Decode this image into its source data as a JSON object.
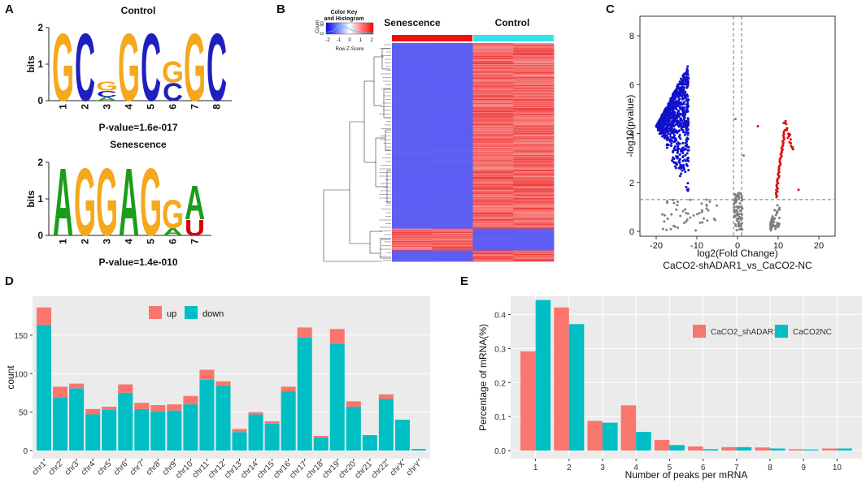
{
  "panel_labels": {
    "a": "A",
    "b": "B",
    "c": "C",
    "d": "D",
    "e": "E"
  },
  "colors": {
    "A": "#1a9d1a",
    "C": "#1f1fbf",
    "G": "#f5a81c",
    "U": "#d50000",
    "up": "#f8766d",
    "down": "#00bfc4",
    "heat_low": "#5b5bf5",
    "heat_high": "#f03a3a",
    "senescence_bar": "#ee1111",
    "control_bar": "#33e4ee",
    "volcano_blue": "#1010cc",
    "volcano_red": "#dd1111",
    "volcano_gray": "#808080"
  },
  "chart_data": [
    {
      "type": "sequence_logo",
      "title": "Control",
      "ylabel": "bits",
      "ylim": [
        0,
        2
      ],
      "ytick_labels": [
        "0",
        "1",
        "2"
      ],
      "positions": [
        "1",
        "2",
        "3",
        "4",
        "5",
        "6",
        "7",
        "8"
      ],
      "stacks": [
        [
          {
            "letter": "G",
            "bits": 1.9
          }
        ],
        [
          {
            "letter": "C",
            "bits": 1.9
          }
        ],
        [
          {
            "letter": "G",
            "bits": 0.25
          },
          {
            "letter": "C",
            "bits": 0.18
          },
          {
            "letter": "A",
            "bits": 0.1
          }
        ],
        [
          {
            "letter": "G",
            "bits": 1.9
          }
        ],
        [
          {
            "letter": "C",
            "bits": 1.9
          }
        ],
        [
          {
            "letter": "G",
            "bits": 0.6
          },
          {
            "letter": "C",
            "bits": 0.5
          }
        ],
        [
          {
            "letter": "G",
            "bits": 1.9
          }
        ],
        [
          {
            "letter": "C",
            "bits": 1.9
          }
        ]
      ],
      "annotation": "P-value=1.6e-017"
    },
    {
      "type": "sequence_logo",
      "title": "Senescence",
      "ylabel": "bits",
      "ylim": [
        0,
        2
      ],
      "ytick_labels": [
        "0",
        "1",
        "2"
      ],
      "positions": [
        "1",
        "2",
        "3",
        "4",
        "5",
        "6",
        "7"
      ],
      "stacks": [
        [
          {
            "letter": "A",
            "bits": 1.9
          }
        ],
        [
          {
            "letter": "G",
            "bits": 1.9
          }
        ],
        [
          {
            "letter": "G",
            "bits": 1.9
          }
        ],
        [
          {
            "letter": "A",
            "bits": 1.9
          }
        ],
        [
          {
            "letter": "G",
            "bits": 1.9
          }
        ],
        [
          {
            "letter": "G",
            "bits": 0.8
          },
          {
            "letter": "A",
            "bits": 0.2
          }
        ],
        [
          {
            "letter": "A",
            "bits": 0.95
          },
          {
            "letter": "U",
            "bits": 0.45
          }
        ]
      ],
      "annotation": "P-value=1.4e-010"
    },
    {
      "type": "heatmap",
      "column_groups": [
        "Senescence",
        "Control"
      ],
      "key_title": "Color Key\nand Histogram",
      "key_title_lines": [
        "Color Key",
        "and Histogram"
      ],
      "key_xlabel": "Row Z-Score",
      "key_ticks": [
        "-2",
        "-1",
        "0",
        "1",
        "2"
      ],
      "key_ylabel": "Count",
      "key_yticks": [
        "0",
        "30"
      ],
      "blocks": [
        {
          "rows": 0.85,
          "senescence": "low",
          "control": "high"
        },
        {
          "rows": 0.1,
          "senescence": "high",
          "control": "low"
        },
        {
          "rows": 0.05,
          "senescence": "low",
          "control": "high"
        }
      ]
    },
    {
      "type": "scatter",
      "xlabel": "log2(Fold Change)",
      "ylabel": "-log10(pvalue)",
      "subtitle": "CaCO2-shADAR1_vs_CaCO2-NC",
      "xlim": [
        -24,
        24
      ],
      "ylim": [
        -0.2,
        8.8
      ],
      "xticks": [
        -20,
        -10,
        0,
        10,
        20
      ],
      "yticks": [
        0,
        2,
        4,
        6,
        8
      ],
      "thresholds": {
        "x": [
          -1,
          1
        ],
        "y": 1.3
      },
      "groups": [
        {
          "name": "down",
          "x_range": [
            -20,
            -12
          ],
          "y_range": [
            1.3,
            6.8
          ],
          "count": 900
        },
        {
          "name": "up",
          "x_range": [
            9,
            13
          ],
          "y_range": [
            1.3,
            4.7
          ],
          "count": 70
        },
        {
          "name": "ns",
          "x_range": [
            -20,
            14
          ],
          "y_range": [
            0,
            1.3
          ],
          "count": 180
        }
      ]
    },
    {
      "type": "bar",
      "stacked": true,
      "ylabel": "count",
      "xlabel": "",
      "ylim": [
        0,
        190
      ],
      "yticks": [
        0,
        50,
        100,
        150
      ],
      "categories": [
        "chr1",
        "chr2",
        "chr3",
        "chr4",
        "chr5",
        "chr6",
        "chr7",
        "chr8",
        "chr9",
        "chr10",
        "chr11",
        "chr12",
        "chr13",
        "chr14",
        "chr15",
        "chr16",
        "chr17",
        "chr18",
        "chr19",
        "chr20",
        "chr21",
        "chr22",
        "chrX",
        "chrY"
      ],
      "legend_position": "top",
      "series": [
        {
          "name": "down",
          "values": [
            163,
            69,
            81,
            47,
            53,
            75,
            54,
            51,
            52,
            60,
            92,
            84,
            24,
            47,
            35,
            77,
            147,
            17,
            139,
            57,
            20,
            67,
            40,
            2
          ]
        },
        {
          "name": "up",
          "values": [
            23,
            14,
            6,
            7,
            4,
            11,
            8,
            8,
            8,
            11,
            13,
            6,
            4,
            3,
            3,
            6,
            13,
            2,
            19,
            7,
            0,
            6,
            0,
            0
          ]
        }
      ]
    },
    {
      "type": "bar",
      "grouped": true,
      "xlabel": "Number of peaks per mRNA",
      "ylabel": "Percentage of mRNA(%)",
      "ylim": [
        0,
        0.46
      ],
      "yticks": [
        0.0,
        0.1,
        0.2,
        0.3,
        0.4
      ],
      "ytick_labels": [
        "0.0",
        "0.1",
        "0.2",
        "0.3",
        "0.4"
      ],
      "categories": [
        "1",
        "2",
        "3",
        "4",
        "5",
        "6",
        "7",
        "8",
        "9",
        "10"
      ],
      "legend_position": "top-right",
      "series": [
        {
          "name": "CaCO2_shADAR1",
          "values": [
            0.292,
            0.421,
            0.087,
            0.133,
            0.031,
            0.012,
            0.01,
            0.009,
            0.004,
            0.006
          ]
        },
        {
          "name": "CaCO2NC",
          "values": [
            0.443,
            0.372,
            0.082,
            0.055,
            0.016,
            0.004,
            0.01,
            0.006,
            0.003,
            0.006
          ]
        }
      ]
    }
  ]
}
